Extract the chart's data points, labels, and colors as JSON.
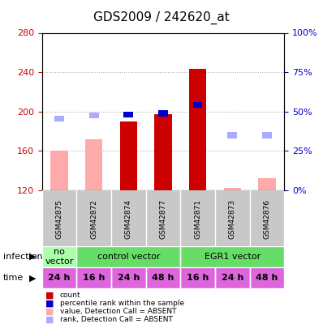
{
  "title": "GDS2009 / 242620_at",
  "samples": [
    "GSM42875",
    "GSM42872",
    "GSM42874",
    "GSM42877",
    "GSM42871",
    "GSM42873",
    "GSM42876"
  ],
  "ylim": [
    120,
    280
  ],
  "yticks": [
    120,
    160,
    200,
    240,
    280
  ],
  "y_right_ticks": [
    0,
    25,
    50,
    75,
    100
  ],
  "y_right_tick_positions": [
    120,
    160,
    200,
    240,
    280
  ],
  "bar_values": [
    null,
    null,
    190,
    197,
    243,
    null,
    null
  ],
  "bar_top_blue": [
    null,
    null,
    197,
    198,
    207,
    null,
    null
  ],
  "absent_bar_values": [
    160,
    172,
    null,
    null,
    null,
    122,
    132
  ],
  "absent_rank_values": [
    193,
    196,
    null,
    null,
    null,
    176,
    176
  ],
  "infection_groups": [
    {
      "label": "no\nvector",
      "start": 0,
      "end": 1,
      "color": "#ccffcc"
    },
    {
      "label": "control vector",
      "start": 1,
      "end": 4,
      "color": "#66dd66"
    },
    {
      "label": "EGR1 vector",
      "start": 4,
      "end": 7,
      "color": "#66dd66"
    }
  ],
  "time_labels": [
    "24 h",
    "16 h",
    "24 h",
    "48 h",
    "16 h",
    "24 h",
    "48 h"
  ],
  "time_color": "#dd66dd",
  "bar_color_present": "#cc0000",
  "bar_color_absent": "#ffaaaa",
  "rank_color_present": "#0000cc",
  "rank_color_absent": "#aaaaff",
  "bar_width": 0.5,
  "grid_color": "#aaaaaa",
  "bg_color": "#ffffff",
  "plot_bg": "#ffffff",
  "left_axis_color": "#cc0000",
  "right_axis_color": "#0000cc"
}
